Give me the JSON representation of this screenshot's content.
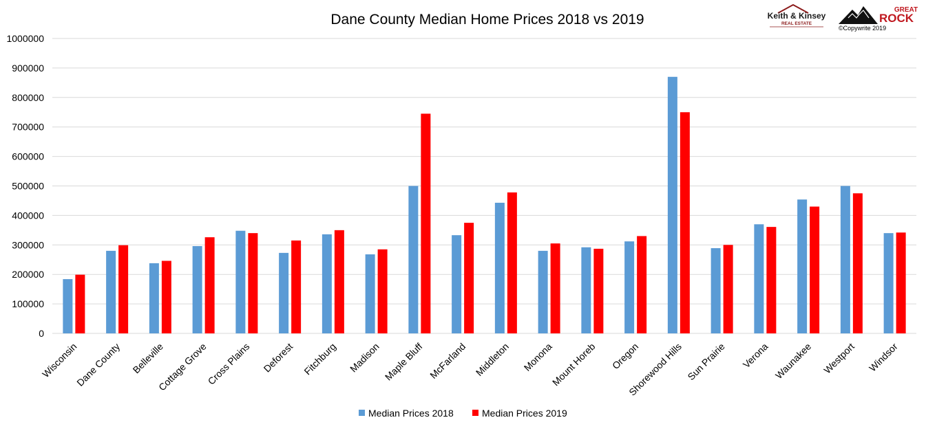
{
  "chart_data": {
    "type": "bar",
    "title": "Dane County Median Home Prices 2018 vs 2019",
    "xlabel": "",
    "ylabel": "",
    "ylim": [
      0,
      1000000
    ],
    "yticks": [
      "0",
      "100000",
      "200000",
      "300000",
      "400000",
      "500000",
      "600000",
      "700000",
      "800000",
      "900000",
      "1000000"
    ],
    "grid": true,
    "legend_position": "bottom",
    "categories": [
      "Wisconsin",
      "Dane County",
      "Belleville",
      "Cottage Grove",
      "Cross Plains",
      "Deforest",
      "Fitchburg",
      "Madison",
      "Maple Bluff",
      "McFarland",
      "Middleton",
      "Monona",
      "Mount Horeb",
      "Oregon",
      "Shorewood Hills",
      "Sun Prairie",
      "Verona",
      "Waunakee",
      "Westport",
      "Windsor"
    ],
    "series": [
      {
        "name": "Median Prices 2018",
        "color": "#5b9bd5",
        "values": [
          184000,
          280000,
          238000,
          296000,
          348000,
          273000,
          336000,
          268000,
          500000,
          333000,
          443000,
          280000,
          292000,
          312000,
          870000,
          289000,
          370000,
          454000,
          500000,
          340000
        ]
      },
      {
        "name": "Median Prices 2019",
        "color": "#ff0000",
        "values": [
          199000,
          299000,
          246000,
          326000,
          340000,
          315000,
          350000,
          285000,
          745000,
          375000,
          478000,
          305000,
          287000,
          330000,
          750000,
          300000,
          361000,
          430000,
          475000,
          342000
        ]
      }
    ]
  },
  "logos": {
    "logo1_line1": "Keith & Kinsey",
    "logo1_line2": "REAL ESTATE",
    "logo2_line1": "GREAT",
    "logo2_line2": "ROCK",
    "copyright": "©Copywrite 2019"
  }
}
